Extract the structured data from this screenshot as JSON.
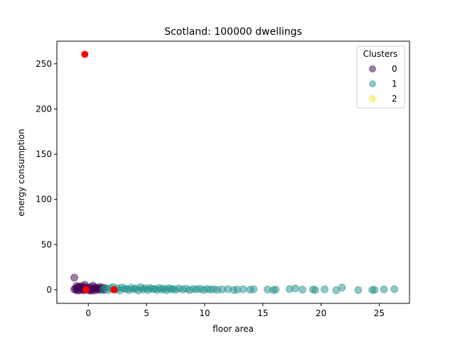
{
  "chart_data": {
    "type": "scatter",
    "title": "Scotland:  100000 dwellings",
    "xlabel": "floor area",
    "ylabel": "energy consumption",
    "xlim": [
      -2.7,
      27.6
    ],
    "ylim": [
      -15,
      275
    ],
    "xticks": [
      0,
      5,
      10,
      15,
      20,
      25
    ],
    "yticks": [
      0,
      50,
      100,
      150,
      200,
      250
    ],
    "legend": {
      "title": "Clusters",
      "placement": "top-right",
      "entries": [
        "0",
        "1",
        "2"
      ]
    },
    "series": [
      {
        "name": "0",
        "color": "#440154",
        "opacity": 0.5,
        "points": [
          [
            -1.2,
            13.5
          ],
          [
            -1.2,
            0.5
          ],
          [
            -1.1,
            1.5
          ],
          [
            -1.0,
            -0.5
          ],
          [
            -0.9,
            2.5
          ],
          [
            -0.9,
            0.8
          ],
          [
            -0.8,
            3.5
          ],
          [
            -0.8,
            -0.8
          ],
          [
            -0.7,
            1.2
          ],
          [
            -0.6,
            2.0
          ],
          [
            -0.6,
            4.0
          ],
          [
            -0.5,
            0.3
          ],
          [
            -0.4,
            -0.6
          ],
          [
            -0.4,
            1.8
          ],
          [
            -0.3,
            3.0
          ],
          [
            -0.2,
            0.7
          ],
          [
            -0.1,
            2.2
          ],
          [
            0.0,
            -0.4
          ],
          [
            0.1,
            1.0
          ],
          [
            0.2,
            3.2
          ],
          [
            0.3,
            0.2
          ],
          [
            0.4,
            4.5
          ],
          [
            0.5,
            1.5
          ],
          [
            0.5,
            -0.7
          ],
          [
            0.6,
            2.6
          ],
          [
            0.7,
            0.4
          ],
          [
            0.8,
            1.9
          ],
          [
            0.9,
            -0.3
          ],
          [
            1.0,
            3.1
          ],
          [
            1.1,
            0.9
          ],
          [
            1.2,
            2.3
          ],
          [
            1.3,
            -0.2
          ],
          [
            1.4,
            1.6
          ],
          [
            -1.0,
            4.2
          ],
          [
            -0.3,
            5.5
          ],
          [
            0.2,
            -1.0
          ]
        ]
      },
      {
        "name": "1",
        "color": "#21918c",
        "opacity": 0.5,
        "points": [
          [
            1.3,
            0.5
          ],
          [
            1.5,
            2.0
          ],
          [
            1.7,
            -0.5
          ],
          [
            1.9,
            1.5
          ],
          [
            2.1,
            3.0
          ],
          [
            2.3,
            0.2
          ],
          [
            2.5,
            1.8
          ],
          [
            2.7,
            -0.7
          ],
          [
            2.9,
            2.5
          ],
          [
            3.1,
            0.9
          ],
          [
            3.3,
            1.2
          ],
          [
            3.5,
            -0.3
          ],
          [
            3.7,
            2.2
          ],
          [
            3.9,
            0.6
          ],
          [
            4.1,
            1.4
          ],
          [
            4.3,
            -0.6
          ],
          [
            4.5,
            2.8
          ],
          [
            4.7,
            0.3
          ],
          [
            4.9,
            1.6
          ],
          [
            5.1,
            -0.4
          ],
          [
            5.3,
            2.0
          ],
          [
            5.5,
            0.8
          ],
          [
            5.7,
            1.1
          ],
          [
            5.9,
            -0.2
          ],
          [
            6.1,
            1.9
          ],
          [
            6.3,
            0.4
          ],
          [
            6.5,
            1.3
          ],
          [
            6.7,
            -0.5
          ],
          [
            6.9,
            1.7
          ],
          [
            7.1,
            0.6
          ],
          [
            7.3,
            1.0
          ],
          [
            7.5,
            -0.1
          ],
          [
            7.8,
            1.5
          ],
          [
            8.1,
            0.3
          ],
          [
            8.4,
            1.2
          ],
          [
            8.7,
            -0.3
          ],
          [
            9.0,
            0.9
          ],
          [
            9.3,
            0.5
          ],
          [
            9.6,
            1.1
          ],
          [
            9.9,
            -0.2
          ],
          [
            10.2,
            0.8
          ],
          [
            10.5,
            0.2
          ],
          [
            10.8,
            0.6
          ],
          [
            11.1,
            -0.1
          ],
          [
            11.5,
            0.4
          ],
          [
            12.0,
            0.7
          ],
          [
            12.5,
            -0.3
          ],
          [
            12.8,
            0.2
          ],
          [
            13.3,
            0.5
          ],
          [
            13.9,
            0.1
          ],
          [
            14.2,
            0.6
          ],
          [
            15.4,
            0.3
          ],
          [
            15.9,
            -0.4
          ],
          [
            16.1,
            0.2
          ],
          [
            17.3,
            0.8
          ],
          [
            17.8,
            1.5
          ],
          [
            18.4,
            0.2
          ],
          [
            19.3,
            0.3
          ],
          [
            19.5,
            -0.2
          ],
          [
            20.3,
            0.4
          ],
          [
            21.3,
            -0.5
          ],
          [
            21.8,
            2.5
          ],
          [
            23.2,
            -0.3
          ],
          [
            24.4,
            -0.2
          ],
          [
            24.6,
            -0.1
          ],
          [
            25.4,
            0.4
          ],
          [
            26.3,
            0.7
          ]
        ]
      },
      {
        "name": "2",
        "color": "#fde725",
        "opacity": 0.5,
        "points": []
      }
    ],
    "centroids": {
      "color": "#ff0000",
      "points": [
        [
          -0.3,
          260.5
        ],
        [
          -0.2,
          0.2
        ],
        [
          2.2,
          0.1
        ]
      ]
    }
  }
}
